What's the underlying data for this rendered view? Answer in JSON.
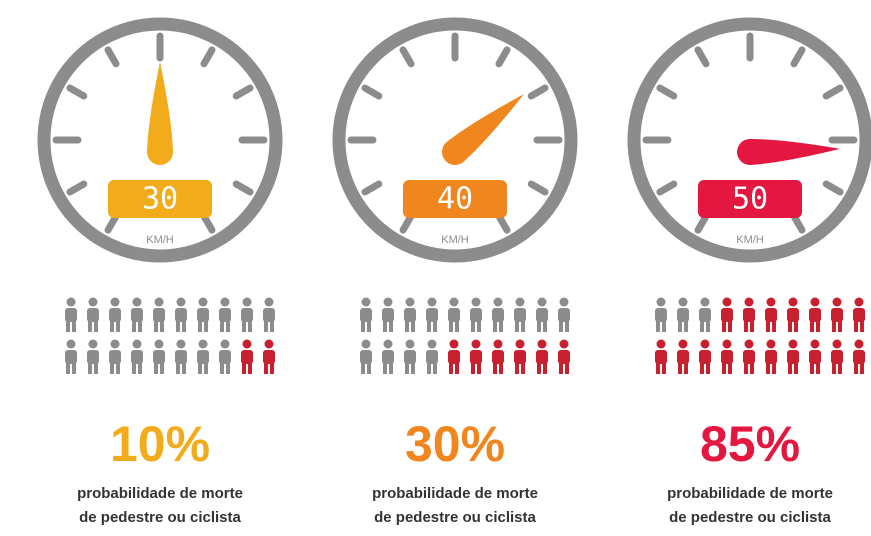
{
  "panels": [
    {
      "speed": "30",
      "unit": "KM/H",
      "percent": "10%",
      "caption": [
        "probabilidade de morte",
        "de pedestre ou ciclista"
      ],
      "people": {
        "total": 20,
        "red": 2
      },
      "color": "#f2ab1a"
    },
    {
      "speed": "40",
      "unit": "KM/H",
      "percent": "30%",
      "caption": [
        "probabilidade de morte",
        "de pedestre ou ciclista"
      ],
      "people": {
        "total": 20,
        "red": 6
      },
      "color": "#f0861e"
    },
    {
      "speed": "50",
      "unit": "KM/H",
      "percent": "85%",
      "caption": [
        "probabilidade de morte",
        "de pedestre ou ciclista"
      ],
      "people": {
        "total": 20,
        "red": 17
      },
      "color": "#e3173f"
    }
  ]
}
